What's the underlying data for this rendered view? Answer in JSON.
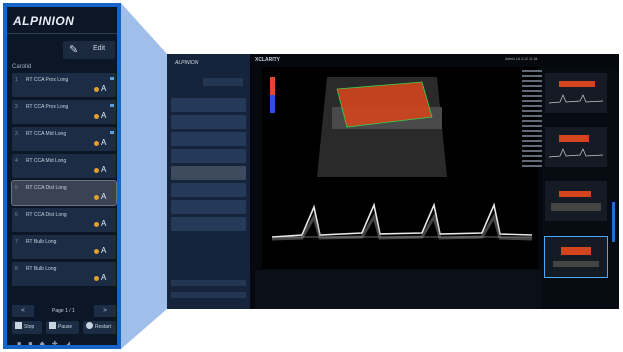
{
  "brand": {
    "logo_text": "ALPINION",
    "accent": "#1764c8",
    "panel_bg": "#0b1626"
  },
  "side_panel": {
    "edit_icon": "edit-icon",
    "edit_label": "Edit",
    "section_label": "Carotid",
    "items": [
      {
        "num": "1",
        "label": "RT CCA Prox Long"
      },
      {
        "num": "2",
        "label": "RT CCA Prox Long"
      },
      {
        "num": "3",
        "label": "RT CCA Mid Long"
      },
      {
        "num": "4",
        "label": "RT CCA Mid Long"
      },
      {
        "num": "5",
        "label": "RT CCA Dist Long",
        "selected": true
      },
      {
        "num": "6",
        "label": "RT CCA Dist Long"
      },
      {
        "num": "7",
        "label": "RT Bulb Long"
      },
      {
        "num": "8",
        "label": "RT Bulb Long"
      }
    ],
    "pager": {
      "prev": "<",
      "text": "Page 1 / 1",
      "next": ">"
    },
    "actions": [
      {
        "label": "Stop",
        "icon": "stop-icon"
      },
      {
        "label": "Pause",
        "icon": "pause-icon"
      },
      {
        "label": "Restart",
        "icon": "restart-icon"
      }
    ],
    "bottom_icons": [
      "lock-icon",
      "lock-icon",
      "probe-icon",
      "tool-icon",
      "settings-icon"
    ]
  },
  "screen": {
    "title": "XCLARITY",
    "info": [
      "Admin",
      "LA 3-12",
      "11:34"
    ]
  }
}
